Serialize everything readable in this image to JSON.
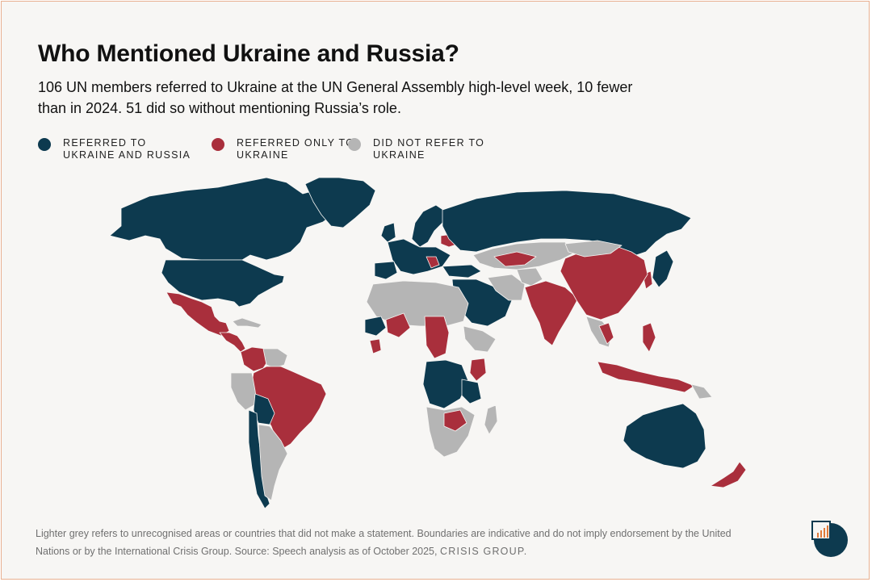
{
  "title": "Who Mentioned Ukraine and Russia?",
  "subtitle": "106 UN members referred to Ukraine at the UN General Assembly high-level week, 10 fewer than in 2024. 51 did so without mentioning Russia’s role.",
  "legend": [
    {
      "label": "REFERRED TO UKRAINE AND RUSSIA",
      "color": "#0d3a4f"
    },
    {
      "label": "REFERRED ONLY TO UKRAINE",
      "color": "#a92f3c"
    },
    {
      "label": "DID NOT REFER TO UKRAINE",
      "color": "#b5b5b5"
    }
  ],
  "map_colors": {
    "ukraine_and_russia": "#0d3a4f",
    "only_ukraine": "#a92f3c",
    "did_not_refer": "#b5b5b5",
    "no_statement": "#d9d9d9",
    "background": "#f7f6f4"
  },
  "footer": {
    "note": "Lighter grey refers to unrecognised areas or countries that did not make a statement. Boundaries are indicative and do not imply endorsement by the United Nations or by the International Crisis Group. Source: Speech analysis as of October 2025,",
    "org": "CRISIS GROUP."
  }
}
